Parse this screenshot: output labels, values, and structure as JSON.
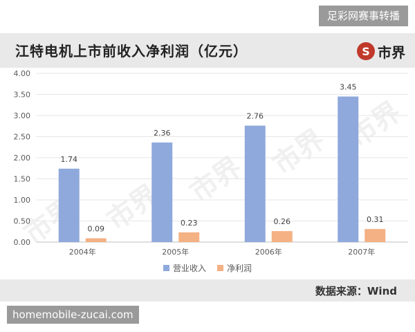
{
  "site_tag": "足彩网赛事转播",
  "site_url": "homemobile-zucai.com",
  "logo": {
    "icon": "S",
    "text": "市界"
  },
  "watermark": "市界",
  "source_text": "数据来源：Wind",
  "colors": {
    "revenue": "#8fa9dc",
    "profit": "#f4b183"
  },
  "chart_data": {
    "type": "bar",
    "title": "江特电机上市前收入净利润（亿元）",
    "categories": [
      "2004年",
      "2005年",
      "2006年",
      "2007年"
    ],
    "series": [
      {
        "name": "营业收入",
        "values": [
          1.74,
          2.36,
          2.76,
          3.45
        ],
        "labels": [
          "1.74",
          "2.36",
          "2.76",
          "3.45"
        ]
      },
      {
        "name": "净利润",
        "values": [
          0.09,
          0.23,
          0.26,
          0.31
        ],
        "labels": [
          "0.09",
          "0.23",
          "0.26",
          "0.31"
        ]
      }
    ],
    "yticks": [
      "0.00",
      "0.50",
      "1.00",
      "1.50",
      "2.00",
      "2.50",
      "3.00",
      "3.50",
      "4.00"
    ],
    "ylim": [
      0,
      4
    ],
    "legend": "bottom"
  }
}
